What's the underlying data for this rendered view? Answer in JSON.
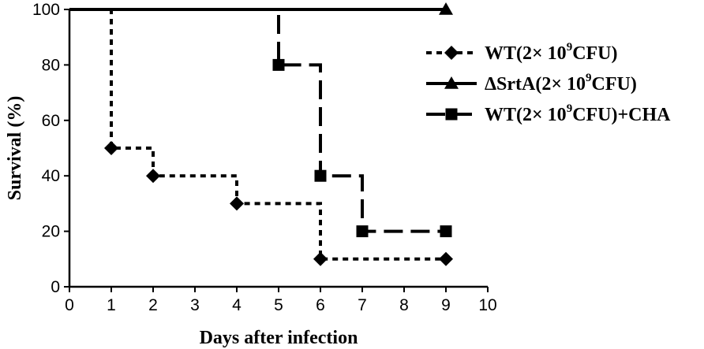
{
  "chart_data": {
    "type": "line",
    "step": true,
    "xlabel": "Days after infection",
    "ylabel": "Survival (%)",
    "xlim": [
      0,
      10
    ],
    "ylim": [
      0,
      100
    ],
    "xticks": [
      "0",
      "1",
      "2",
      "3",
      "4",
      "5",
      "6",
      "7",
      "8",
      "9",
      "10"
    ],
    "yticks": [
      "0",
      "20",
      "40",
      "60",
      "80",
      "100"
    ],
    "grid": false,
    "legend_position": "top-right",
    "series": [
      {
        "name": "WT(2× 10⁹CFU)",
        "legend_main": "WT(2× 10",
        "legend_sup": "9",
        "legend_tail": "CFU)",
        "marker": "diamond",
        "dash": "dotted",
        "color": "#000000",
        "x": [
          0,
          1,
          2,
          4,
          6,
          9
        ],
        "y": [
          100,
          50,
          40,
          30,
          10,
          10
        ]
      },
      {
        "name": "ΔSrtA(2× 10⁹CFU)",
        "legend_main": "ΔSrtA(2× 10",
        "legend_sup": "9",
        "legend_tail": "CFU)",
        "marker": "triangle",
        "dash": "solid",
        "color": "#000000",
        "x": [
          0,
          9
        ],
        "y": [
          100,
          100
        ]
      },
      {
        "name": "WT(2× 10⁹CFU)+CHA",
        "legend_main": "WT(2× 10",
        "legend_sup": "9",
        "legend_tail": "CFU)+CHA",
        "marker": "square",
        "dash": "dashed",
        "color": "#000000",
        "x": [
          0,
          5,
          6,
          7,
          9
        ],
        "y": [
          100,
          80,
          40,
          20,
          20
        ]
      }
    ]
  }
}
